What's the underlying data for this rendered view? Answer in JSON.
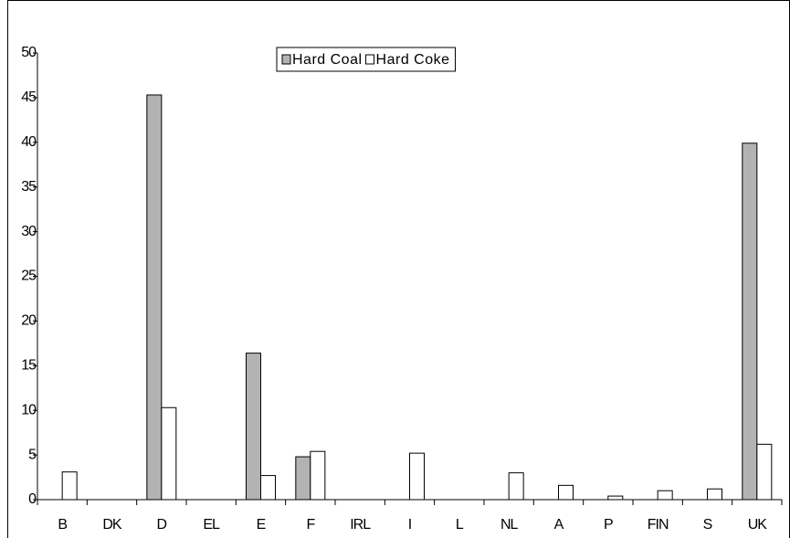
{
  "chart_data": {
    "type": "bar",
    "categories": [
      "B",
      "DK",
      "D",
      "EL",
      "E",
      "F",
      "IRL",
      "I",
      "L",
      "NL",
      "A",
      "P",
      "FIN",
      "S",
      "UK"
    ],
    "series": [
      {
        "name": "Hard Coal",
        "color": "#b3b3b3",
        "values": [
          0,
          0,
          45.3,
          0,
          16.4,
          4.8,
          0,
          0,
          0,
          0,
          0,
          0,
          0,
          0,
          39.9
        ]
      },
      {
        "name": "Hard Coke",
        "color": "#ffffff",
        "values": [
          3.1,
          0,
          10.3,
          0,
          2.7,
          5.4,
          0,
          5.2,
          0,
          3.0,
          1.6,
          0.4,
          1.0,
          1.2,
          6.2
        ]
      }
    ],
    "ylim": [
      0,
      50
    ],
    "yticks": [
      0,
      5,
      10,
      15,
      20,
      25,
      30,
      35,
      40,
      45,
      50
    ],
    "legend": "top"
  }
}
